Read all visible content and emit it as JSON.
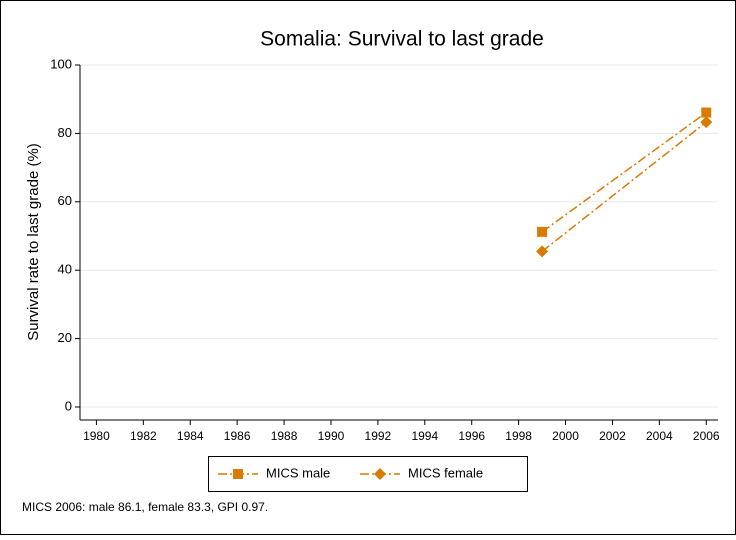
{
  "chart_data": {
    "type": "line",
    "title": "Somalia: Survival to last grade",
    "y_label": "Survival rate to last grade (%)",
    "note": "MICS 2006: male 86.1, female 83.3, GPI 0.97.",
    "series": [
      {
        "name": "MICS male",
        "color": "#d97b00",
        "marker": "square",
        "x": [
          1999,
          2006
        ],
        "values": [
          51.2,
          86.1
        ]
      },
      {
        "name": "MICS female",
        "color": "#d97b00",
        "marker": "diamond",
        "x": [
          1999,
          2006
        ],
        "values": [
          45.5,
          83.3
        ]
      }
    ],
    "xlim": [
      1979.3,
      2006.5
    ],
    "xticks": [
      1980,
      1982,
      1984,
      1986,
      1988,
      1990,
      1992,
      1994,
      1996,
      1998,
      2000,
      2002,
      2004,
      2006
    ],
    "ylim": [
      -3.8,
      100
    ],
    "yticks": [
      0,
      20,
      40,
      60,
      80,
      100
    ],
    "grid": true
  }
}
